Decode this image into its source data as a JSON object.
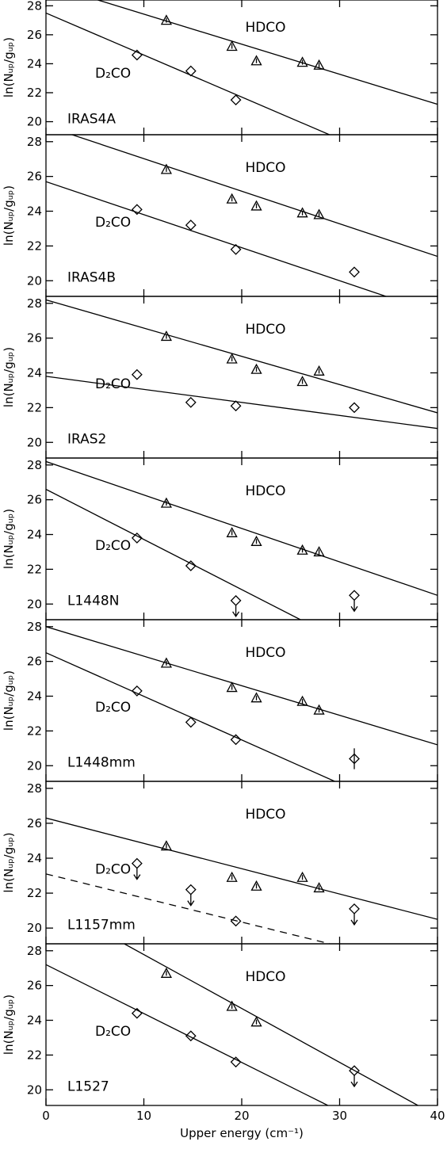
{
  "chart_data": [
    {
      "type": "scatter",
      "title": "IRAS4A",
      "ylabel": "ln(Nᵤₚ/gᵤₚ)",
      "xlim": [
        0,
        40
      ],
      "ylim": [
        19.1,
        28.4
      ],
      "xticks": [
        0,
        10,
        20,
        30,
        40
      ],
      "yticks": [
        20,
        22,
        24,
        26,
        28
      ],
      "series": [
        {
          "name": "HDCO",
          "marker": "triangle",
          "x": [
            12.3,
            19,
            21.5,
            26.2,
            27.9
          ],
          "values": [
            27.0,
            25.2,
            24.2,
            24.1,
            23.9
          ],
          "fit": {
            "x": [
              0,
              40
            ],
            "y": [
              29.5,
              21.2
            ],
            "dashed": false
          }
        },
        {
          "name": "D₂CO",
          "marker": "diamond",
          "x": [
            9.3,
            14.8,
            19.4
          ],
          "values": [
            24.6,
            23.5,
            21.5
          ],
          "fit": {
            "x": [
              0,
              40
            ],
            "y": [
              27.5,
              15.9
            ],
            "dashed": false
          }
        }
      ]
    },
    {
      "type": "scatter",
      "title": "IRAS4B",
      "ylabel": "ln(Nᵤₚ/gᵤₚ)",
      "xlim": [
        0,
        40
      ],
      "ylim": [
        19.1,
        28.4
      ],
      "xticks": [
        0,
        10,
        20,
        30,
        40
      ],
      "yticks": [
        20,
        22,
        24,
        26,
        28
      ],
      "series": [
        {
          "name": "HDCO",
          "marker": "triangle",
          "x": [
            12.3,
            19,
            21.5,
            26.2,
            27.9
          ],
          "values": [
            26.4,
            24.7,
            24.3,
            23.9,
            23.8
          ],
          "fit": {
            "x": [
              0,
              40
            ],
            "y": [
              28.9,
              21.4
            ],
            "dashed": false
          }
        },
        {
          "name": "D₂CO",
          "marker": "diamond",
          "x": [
            9.3,
            14.8,
            19.4,
            31.5
          ],
          "values": [
            24.1,
            23.2,
            21.8,
            20.5
          ],
          "fit": {
            "x": [
              0,
              40
            ],
            "y": [
              25.7,
              18.1
            ],
            "dashed": false
          }
        }
      ]
    },
    {
      "type": "scatter",
      "title": "IRAS2",
      "ylabel": "ln(Nᵤₚ/gᵤₚ)",
      "xlim": [
        0,
        40
      ],
      "ylim": [
        19.1,
        28.4
      ],
      "xticks": [
        0,
        10,
        20,
        30,
        40
      ],
      "yticks": [
        20,
        22,
        24,
        26,
        28
      ],
      "series": [
        {
          "name": "HDCO",
          "marker": "triangle",
          "x": [
            12.3,
            19,
            21.5,
            26.2,
            27.9
          ],
          "values": [
            26.1,
            24.8,
            24.2,
            23.5,
            24.1
          ],
          "fit": {
            "x": [
              0,
              40
            ],
            "y": [
              28.2,
              21.7
            ],
            "dashed": false
          }
        },
        {
          "name": "D₂CO",
          "marker": "diamond",
          "x": [
            9.3,
            14.8,
            19.4,
            31.5
          ],
          "values": [
            23.9,
            22.3,
            22.1,
            22.0
          ],
          "fit": {
            "x": [
              0,
              40
            ],
            "y": [
              23.8,
              20.8
            ],
            "dashed": false
          }
        }
      ]
    },
    {
      "type": "scatter",
      "title": "L1448N",
      "ylabel": "ln(Nᵤₚ/gᵤₚ)",
      "xlim": [
        0,
        40
      ],
      "ylim": [
        19.1,
        28.4
      ],
      "xticks": [
        0,
        10,
        20,
        30,
        40
      ],
      "yticks": [
        20,
        22,
        24,
        26,
        28
      ],
      "series": [
        {
          "name": "HDCO",
          "marker": "triangle",
          "x": [
            12.3,
            19,
            21.5,
            26.2,
            27.9
          ],
          "values": [
            25.8,
            24.1,
            23.6,
            23.1,
            23.0
          ],
          "fit": {
            "x": [
              0,
              40
            ],
            "y": [
              28.2,
              20.5
            ],
            "dashed": false
          }
        },
        {
          "name": "D₂CO",
          "marker": "diamond",
          "x": [
            9.3,
            14.8,
            19.4,
            31.5
          ],
          "values": [
            23.8,
            22.2,
            20.2,
            20.5
          ],
          "upper_limit": [
            false,
            false,
            true,
            true
          ],
          "fit": {
            "x": [
              0,
              26
            ],
            "y": [
              26.6,
              19.1
            ],
            "dashed": false
          }
        }
      ]
    },
    {
      "type": "scatter",
      "title": "L1448mm",
      "ylabel": "ln(Nᵤₚ/gᵤₚ)",
      "xlim": [
        0,
        40
      ],
      "ylim": [
        19.1,
        28.4
      ],
      "xticks": [
        0,
        10,
        20,
        30,
        40
      ],
      "yticks": [
        20,
        22,
        24,
        26,
        28
      ],
      "series": [
        {
          "name": "HDCO",
          "marker": "triangle",
          "x": [
            12.3,
            19,
            21.5,
            26.2,
            27.9
          ],
          "values": [
            25.9,
            24.5,
            23.9,
            23.7,
            23.2
          ],
          "fit": {
            "x": [
              0,
              40
            ],
            "y": [
              28.0,
              21.2
            ],
            "dashed": false
          }
        },
        {
          "name": "D₂CO",
          "marker": "diamond",
          "x": [
            9.3,
            14.8,
            19.4,
            31.5
          ],
          "values": [
            24.3,
            22.5,
            21.5,
            20.4
          ],
          "errors": [
            null,
            null,
            null,
            0.6
          ],
          "fit": {
            "x": [
              0,
              29.5
            ],
            "y": [
              26.5,
              19.1
            ],
            "dashed": false
          }
        }
      ]
    },
    {
      "type": "scatter",
      "title": "L1157mm",
      "ylabel": "ln(Nᵤₚ/gᵤₚ)",
      "xlim": [
        0,
        40
      ],
      "ylim": [
        19.1,
        28.4
      ],
      "xticks": [
        0,
        10,
        20,
        30,
        40
      ],
      "yticks": [
        20,
        22,
        24,
        26,
        28
      ],
      "series": [
        {
          "name": "HDCO",
          "marker": "triangle",
          "x": [
            12.3,
            19,
            21.5,
            26.2,
            27.9
          ],
          "values": [
            24.7,
            22.9,
            22.4,
            22.9,
            22.3
          ],
          "fit": {
            "x": [
              0,
              40
            ],
            "y": [
              26.3,
              20.5
            ],
            "dashed": false
          }
        },
        {
          "name": "D₂CO",
          "marker": "diamond",
          "x": [
            9.3,
            14.8,
            19.4,
            31.5
          ],
          "values": [
            23.7,
            22.2,
            20.4,
            21.1
          ],
          "upper_limit": [
            true,
            true,
            false,
            true
          ],
          "fit": {
            "x": [
              0,
              29
            ],
            "y": [
              23.1,
              19.1
            ],
            "dashed": true
          }
        }
      ]
    },
    {
      "type": "scatter",
      "title": "L1527",
      "ylabel": "ln(Nᵤₚ/gᵤₚ)",
      "xlabel": "Upper energy (cm⁻¹)",
      "xlim": [
        0,
        40
      ],
      "ylim": [
        19.1,
        28.4
      ],
      "xticks": [
        0,
        10,
        20,
        30,
        40
      ],
      "yticks": [
        20,
        22,
        24,
        26,
        28
      ],
      "series": [
        {
          "name": "HDCO",
          "marker": "triangle",
          "x": [
            12.3,
            19,
            21.5
          ],
          "values": [
            26.7,
            24.8,
            23.9
          ],
          "fit": {
            "x": [
              8,
              38
            ],
            "y": [
              28.4,
              19.1
            ],
            "dashed": false
          }
        },
        {
          "name": "D₂CO",
          "marker": "diamond",
          "x": [
            9.3,
            14.8,
            19.4,
            31.5
          ],
          "values": [
            24.4,
            23.1,
            21.6,
            21.1
          ],
          "upper_limit": [
            false,
            false,
            false,
            true
          ],
          "fit": {
            "x": [
              0,
              28.8
            ],
            "y": [
              27.2,
              19.1
            ],
            "dashed": false
          }
        }
      ]
    }
  ]
}
